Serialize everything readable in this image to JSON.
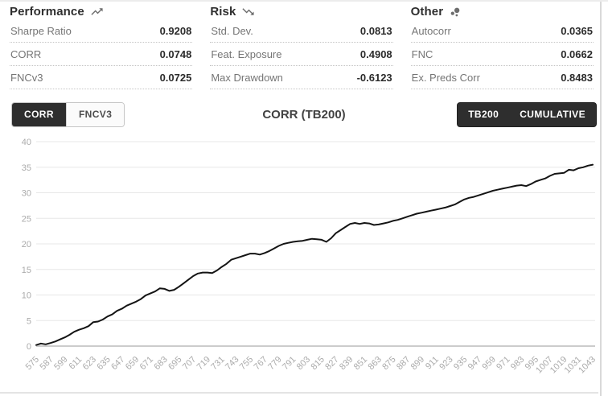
{
  "colors": {
    "dark_button_bg": "#2e2e2e",
    "line_color": "#141414",
    "grid_color": "#e7e7e7",
    "axis_label_color": "#ababab",
    "metric_label_color": "#757575",
    "metric_value_color": "#2b2b2b"
  },
  "stats": {
    "columns": [
      {
        "title": "Performance",
        "icon": "trending-up-icon",
        "rows": [
          {
            "label": "Sharpe Ratio",
            "value": "0.9208"
          },
          {
            "label": "CORR",
            "value": "0.0748"
          },
          {
            "label": "FNCv3",
            "value": "0.0725"
          }
        ]
      },
      {
        "title": "Risk",
        "icon": "trending-down-icon",
        "rows": [
          {
            "label": "Std. Dev.",
            "value": "0.0813"
          },
          {
            "label": "Feat. Exposure",
            "value": "0.4908"
          },
          {
            "label": "Max Drawdown",
            "value": "-0.6123"
          }
        ]
      },
      {
        "title": "Other",
        "icon": "bubble-chart-icon",
        "rows": [
          {
            "label": "Autocorr",
            "value": "0.0365"
          },
          {
            "label": "FNC",
            "value": "0.0662"
          },
          {
            "label": "Ex. Preds Corr",
            "value": "0.8483"
          }
        ]
      }
    ]
  },
  "controls": {
    "chart_title": "CORR (TB200)",
    "metric_toggle": [
      {
        "label": "CORR",
        "active": true
      },
      {
        "label": "FNCV3",
        "active": false
      }
    ],
    "view_toggle": [
      {
        "label": "TB200",
        "active": true
      },
      {
        "label": "CUMULATIVE",
        "active": true
      }
    ]
  },
  "chart_data": {
    "type": "line",
    "title": "CORR (TB200)",
    "xlabel": "",
    "ylabel": "",
    "x_range": [
      575,
      1043
    ],
    "ylim": [
      0,
      40
    ],
    "y_ticks": [
      0,
      5,
      10,
      15,
      20,
      25,
      30,
      35,
      40
    ],
    "x_tick_labels": [
      "575",
      "587",
      "599",
      "611",
      "623",
      "635",
      "647",
      "659",
      "671",
      "683",
      "695",
      "707",
      "719",
      "731",
      "743",
      "755",
      "767",
      "779",
      "791",
      "803",
      "815",
      "827",
      "839",
      "851",
      "863",
      "875",
      "887",
      "899",
      "911",
      "923",
      "935",
      "947",
      "959",
      "971",
      "983",
      "995",
      "1007",
      "1019",
      "1031",
      "1043"
    ],
    "grid": "horizontal",
    "legend": "none",
    "line_color": "#141414",
    "series": [
      {
        "name": "Cumulative CORR (TB200)",
        "points": [
          [
            575,
            0.2
          ],
          [
            579,
            0.5
          ],
          [
            583,
            0.35
          ],
          [
            587,
            0.6
          ],
          [
            591,
            0.9
          ],
          [
            595,
            1.3
          ],
          [
            599,
            1.7
          ],
          [
            603,
            2.2
          ],
          [
            607,
            2.8
          ],
          [
            611,
            3.2
          ],
          [
            615,
            3.5
          ],
          [
            619,
            3.9
          ],
          [
            623,
            4.7
          ],
          [
            627,
            4.8
          ],
          [
            631,
            5.2
          ],
          [
            635,
            5.8
          ],
          [
            639,
            6.2
          ],
          [
            643,
            6.9
          ],
          [
            647,
            7.3
          ],
          [
            651,
            7.9
          ],
          [
            655,
            8.3
          ],
          [
            659,
            8.7
          ],
          [
            663,
            9.2
          ],
          [
            667,
            9.9
          ],
          [
            671,
            10.3
          ],
          [
            675,
            10.7
          ],
          [
            679,
            11.3
          ],
          [
            683,
            11.2
          ],
          [
            687,
            10.8
          ],
          [
            691,
            11.0
          ],
          [
            695,
            11.6
          ],
          [
            699,
            12.3
          ],
          [
            703,
            13.0
          ],
          [
            707,
            13.7
          ],
          [
            711,
            14.2
          ],
          [
            715,
            14.4
          ],
          [
            719,
            14.4
          ],
          [
            723,
            14.3
          ],
          [
            727,
            14.8
          ],
          [
            731,
            15.5
          ],
          [
            735,
            16.1
          ],
          [
            739,
            16.9
          ],
          [
            743,
            17.2
          ],
          [
            747,
            17.5
          ],
          [
            751,
            17.8
          ],
          [
            755,
            18.1
          ],
          [
            759,
            18.1
          ],
          [
            763,
            17.9
          ],
          [
            767,
            18.2
          ],
          [
            771,
            18.6
          ],
          [
            775,
            19.1
          ],
          [
            779,
            19.6
          ],
          [
            783,
            20.0
          ],
          [
            787,
            20.2
          ],
          [
            791,
            20.4
          ],
          [
            795,
            20.5
          ],
          [
            799,
            20.6
          ],
          [
            803,
            20.8
          ],
          [
            807,
            21.0
          ],
          [
            811,
            20.9
          ],
          [
            815,
            20.8
          ],
          [
            819,
            20.4
          ],
          [
            823,
            21.1
          ],
          [
            827,
            22.1
          ],
          [
            831,
            22.7
          ],
          [
            835,
            23.3
          ],
          [
            839,
            23.9
          ],
          [
            843,
            24.1
          ],
          [
            847,
            23.9
          ],
          [
            851,
            24.1
          ],
          [
            855,
            24.0
          ],
          [
            859,
            23.7
          ],
          [
            863,
            23.8
          ],
          [
            867,
            24.0
          ],
          [
            871,
            24.2
          ],
          [
            875,
            24.5
          ],
          [
            879,
            24.7
          ],
          [
            883,
            25.0
          ],
          [
            887,
            25.3
          ],
          [
            891,
            25.6
          ],
          [
            895,
            25.9
          ],
          [
            899,
            26.1
          ],
          [
            903,
            26.3
          ],
          [
            907,
            26.5
          ],
          [
            911,
            26.7
          ],
          [
            915,
            26.9
          ],
          [
            919,
            27.1
          ],
          [
            923,
            27.4
          ],
          [
            927,
            27.7
          ],
          [
            931,
            28.2
          ],
          [
            935,
            28.7
          ],
          [
            939,
            29.0
          ],
          [
            943,
            29.2
          ],
          [
            947,
            29.5
          ],
          [
            951,
            29.8
          ],
          [
            955,
            30.1
          ],
          [
            959,
            30.4
          ],
          [
            963,
            30.6
          ],
          [
            967,
            30.8
          ],
          [
            971,
            31.0
          ],
          [
            975,
            31.2
          ],
          [
            979,
            31.4
          ],
          [
            983,
            31.5
          ],
          [
            987,
            31.3
          ],
          [
            991,
            31.7
          ],
          [
            995,
            32.2
          ],
          [
            999,
            32.5
          ],
          [
            1003,
            32.8
          ],
          [
            1007,
            33.3
          ],
          [
            1011,
            33.7
          ],
          [
            1015,
            33.8
          ],
          [
            1019,
            33.9
          ],
          [
            1023,
            34.5
          ],
          [
            1027,
            34.4
          ],
          [
            1031,
            34.8
          ],
          [
            1035,
            35.0
          ],
          [
            1039,
            35.3
          ],
          [
            1043,
            35.5
          ]
        ]
      }
    ]
  }
}
